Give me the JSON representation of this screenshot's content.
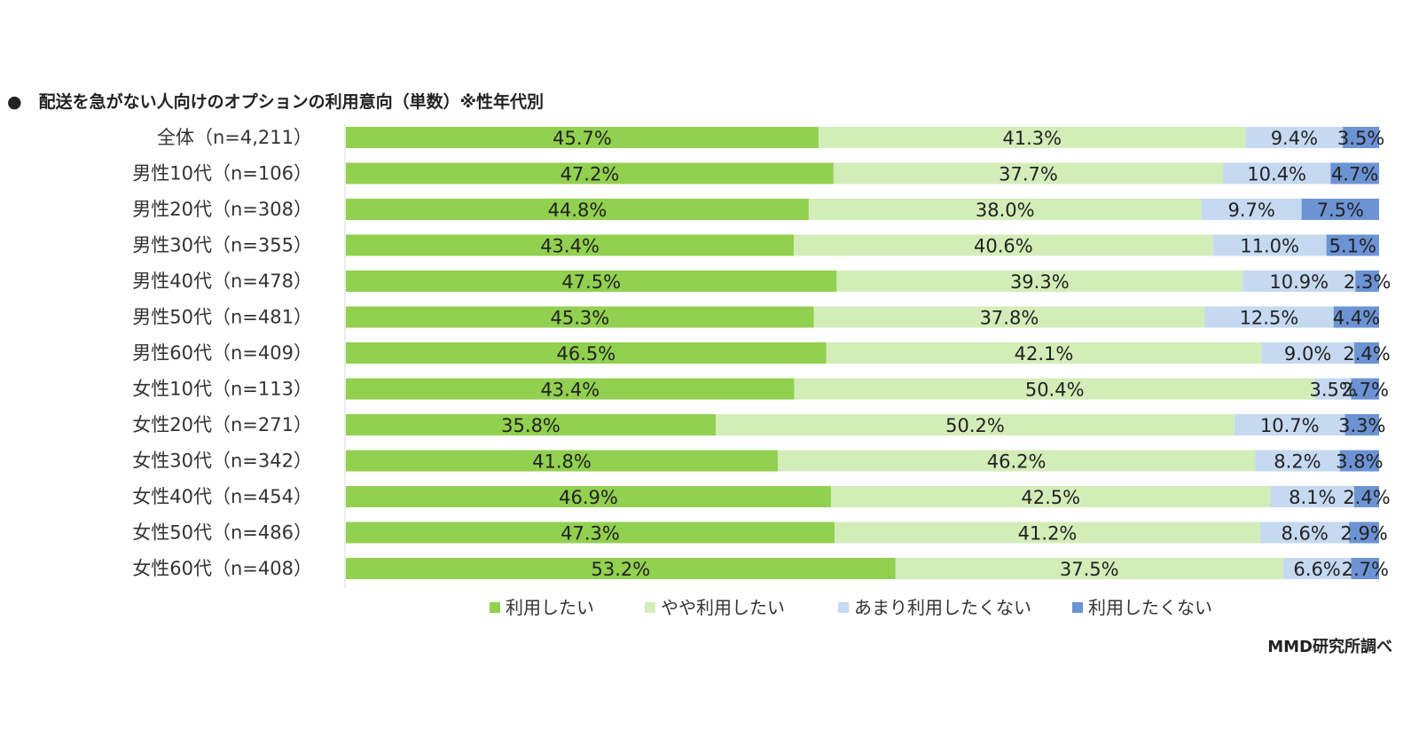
{
  "title": "●　配送を急がない人向けのオプションの利用意向（単数）※性年代別",
  "source": "MMD研究所調べ",
  "chart_data": {
    "type": "bar",
    "orientation": "horizontal",
    "stacked": "percent",
    "unit": "%",
    "categories": [
      "全体（n=4,211）",
      "男性10代（n=106）",
      "男性20代（n=308）",
      "男性30代（n=355）",
      "男性40代（n=478）",
      "男性50代（n=481）",
      "男性60代（n=409）",
      "女性10代（n=113）",
      "女性20代（n=271）",
      "女性30代（n=342）",
      "女性40代（n=454）",
      "女性50代（n=486）",
      "女性60代（n=408）"
    ],
    "series": [
      {
        "name": "利用したい",
        "color": "#92d050",
        "values": [
          45.7,
          47.2,
          44.8,
          43.4,
          47.5,
          45.3,
          46.5,
          43.4,
          35.8,
          41.8,
          46.9,
          47.3,
          53.2
        ]
      },
      {
        "name": "やや利用したい",
        "color": "#d3edb9",
        "values": [
          41.3,
          37.7,
          38.0,
          40.6,
          39.3,
          37.8,
          42.1,
          50.4,
          50.2,
          46.2,
          42.5,
          41.2,
          37.5
        ]
      },
      {
        "name": "あまり利用したくない",
        "color": "#c5d9f1",
        "values": [
          9.4,
          10.4,
          9.7,
          11.0,
          10.9,
          12.5,
          9.0,
          3.5,
          10.7,
          8.2,
          8.1,
          8.6,
          6.6
        ]
      },
      {
        "name": "利用したくない",
        "color": "#6c93d4",
        "values": [
          3.5,
          4.7,
          7.5,
          5.1,
          2.3,
          4.4,
          2.4,
          2.7,
          3.3,
          3.8,
          2.4,
          2.9,
          2.7
        ]
      }
    ],
    "legend_position": "bottom",
    "grid": false,
    "xlim": [
      0,
      100
    ]
  }
}
